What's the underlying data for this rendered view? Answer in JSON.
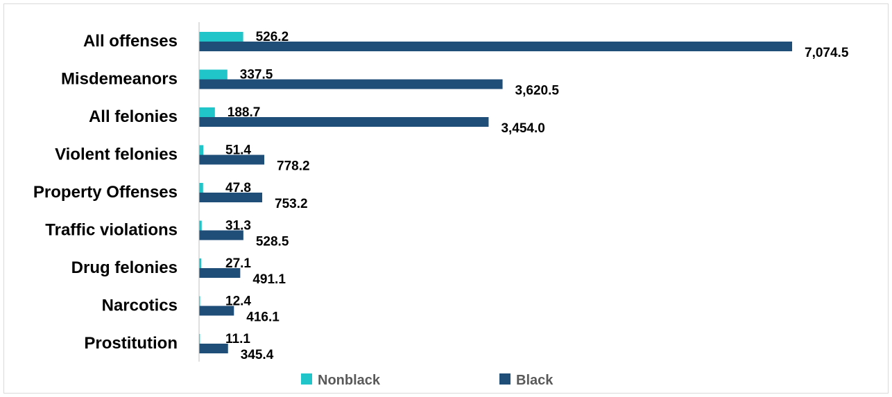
{
  "chart_data": {
    "type": "bar",
    "orientation": "horizontal",
    "categories": [
      "All offenses",
      "Misdemeanors",
      "All felonies",
      "Violent felonies",
      "Property Offenses",
      "Traffic violations",
      "Drug felonies",
      "Narcotics",
      "Prostitution"
    ],
    "series": [
      {
        "name": "Nonblack",
        "color": "#1fc5c9",
        "values": [
          526.2,
          337.5,
          188.7,
          51.4,
          47.8,
          31.3,
          27.1,
          12.4,
          11.1
        ],
        "labels": [
          "526.2",
          "337.5",
          "188.7",
          "51.4",
          "47.8",
          "31.3",
          "27.1",
          "12.4",
          "11.1"
        ]
      },
      {
        "name": "Black",
        "color": "#1f4e79",
        "values": [
          7074.5,
          3620.5,
          3454.0,
          778.2,
          753.2,
          528.5,
          491.1,
          416.1,
          345.4
        ],
        "labels": [
          "7,074.5",
          "3,620.5",
          "3,454.0",
          "778.2",
          "753.2",
          "528.5",
          "491.1",
          "416.1",
          "345.4"
        ]
      }
    ],
    "xlim": [
      0,
      7074.5
    ],
    "grid": false,
    "legend_position": "bottom"
  }
}
